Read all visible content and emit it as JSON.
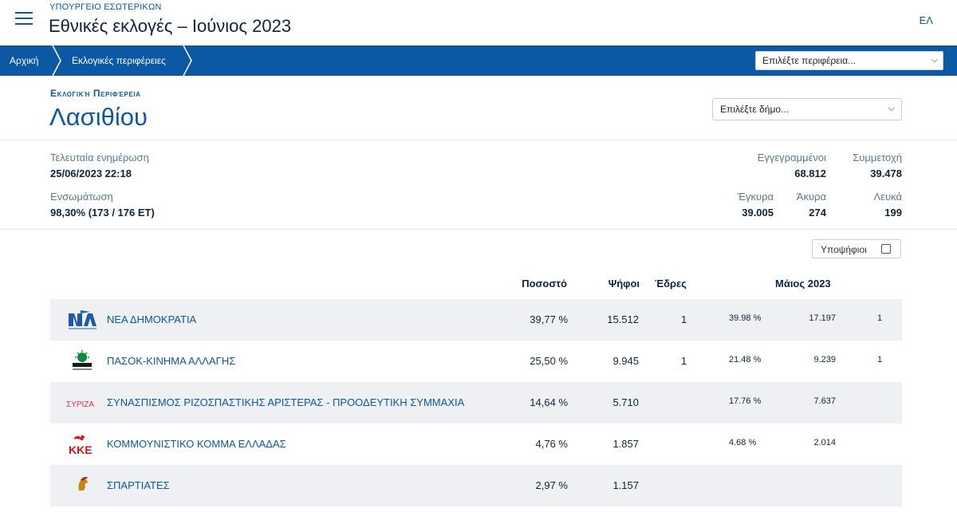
{
  "header": {
    "ministry": "ΥΠΟΥΡΓΕΙΟ ΕΣΩΤΕΡΙΚΩΝ",
    "title": "Εθνικές εκλογές – Ιούνιος 2023",
    "lang": "ΕΛ"
  },
  "breadcrumb": {
    "home": "Αρχική",
    "regions": "Εκλογικές περιφέρειες",
    "region_select": "Επιλέξτε περιφέρεια..."
  },
  "region": {
    "label": "Εκλογική Περιφέρεια",
    "name": "Λασιθίου",
    "muni_select": "Επιλέξτε δήμο..."
  },
  "stats": {
    "last_update_label": "Τελευταία ενημέρωση",
    "last_update_value": "25/06/2023 22:18",
    "incorporation_label": "Ενσωμάτωση",
    "incorporation_value": "98,30% (173 / 176 ΕΤ)",
    "registered_label": "Εγγεγραμμένοι",
    "registered_value": "68.812",
    "turnout_label": "Συμμετοχή",
    "turnout_value": "39.478",
    "valid_label": "Έγκυρα",
    "valid_value": "39.005",
    "invalid_label": "Άκυρα",
    "invalid_value": "274",
    "blank_label": "Λευκά",
    "blank_value": "199"
  },
  "candidates_toggle": "Υποψήφιοι",
  "table": {
    "headers": {
      "percent": "Ποσοστό",
      "votes": "Ψήφοι",
      "seats": "Έδρες",
      "may": "Μάιος 2023"
    },
    "rows": [
      {
        "name": "ΝΕΑ ΔΗΜΟΚΡΑΤΙΑ",
        "logo": "nd-logo-icon",
        "percent": "39,77 %",
        "votes": "15.512",
        "seats": "1",
        "may_percent": "39.98 %",
        "may_votes": "17.197",
        "may_seats": "1"
      },
      {
        "name": "ΠΑΣΟΚ-ΚΙΝΗΜΑ ΑΛΛΑΓΗΣ",
        "logo": "pasok-logo-icon",
        "percent": "25,50 %",
        "votes": "9.945",
        "seats": "1",
        "may_percent": "21.48 %",
        "may_votes": "9.239",
        "may_seats": "1"
      },
      {
        "name": "ΣΥΝΑΣΠΙΣΜΟΣ ΡΙΖΟΣΠΑΣΤΙΚΗΣ ΑΡΙΣΤΕΡΑΣ - ΠΡΟΟΔΕΥΤΙΚΗ ΣΥΜΜΑΧΙΑ",
        "logo": "syriza-logo-icon",
        "logo_text": "ΣΥΡΙΖΑ",
        "percent": "14,64 %",
        "votes": "5.710",
        "seats": "",
        "may_percent": "17.76 %",
        "may_votes": "7.637",
        "may_seats": ""
      },
      {
        "name": "ΚΟΜΜΟΥΝΙΣΤΙΚΟ ΚΟΜΜΑ ΕΛΛΑΔΑΣ",
        "logo": "kke-logo-icon",
        "logo_text": "ΚΚΕ",
        "percent": "4,76 %",
        "votes": "1.857",
        "seats": "",
        "may_percent": "4.68 %",
        "may_votes": "2.014",
        "may_seats": ""
      },
      {
        "name": "ΣΠΑΡΤΙΑΤΕΣ",
        "logo": "spartiates-logo-icon",
        "percent": "2,97 %",
        "votes": "1.157",
        "seats": "",
        "may_percent": "",
        "may_votes": "",
        "may_seats": ""
      }
    ]
  },
  "colors": {
    "brand_blue": "#0c58a4",
    "row_alt": "#eef0f3"
  }
}
